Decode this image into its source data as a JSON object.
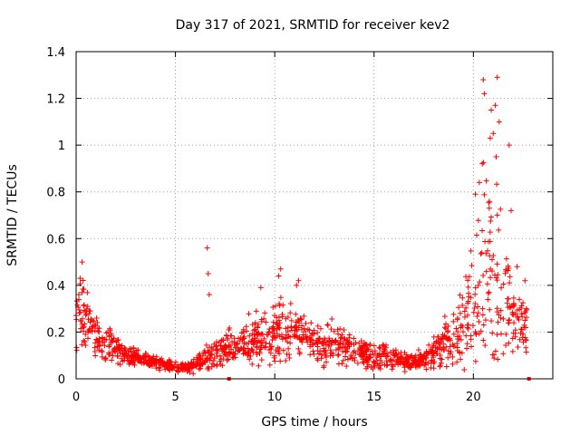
{
  "chart_data": {
    "type": "scatter",
    "title": "Day 317 of 2021, SRMTID for receiver kev2",
    "xlabel": "GPS time / hours",
    "ylabel": "SRMTID / TECUs",
    "xlim": [
      0,
      24
    ],
    "ylim": [
      0,
      1.4
    ],
    "x_ticks": [
      0,
      5,
      10,
      15,
      20
    ],
    "y_ticks": [
      0,
      0.2,
      0.4,
      0.6,
      0.8,
      1,
      1.2,
      1.4
    ],
    "x_tick_labels": [
      "0",
      "5",
      "10",
      "15",
      "20"
    ],
    "y_tick_labels": [
      "0",
      "0.2",
      "0.4",
      "0.6",
      "0.8",
      "1",
      "1.2",
      "1.4"
    ],
    "grid": true,
    "marker": "+",
    "series": [
      {
        "name": "SRMTID",
        "color": "#ff0000",
        "envelope": {
          "hours": [
            0,
            0.2,
            0.5,
            1,
            1.5,
            2,
            2.5,
            3,
            3.5,
            4,
            4.5,
            5,
            5.5,
            6,
            6.5,
            7,
            7.5,
            8,
            8.5,
            9,
            9.5,
            10,
            10.5,
            11,
            11.5,
            12,
            12.5,
            13,
            13.5,
            14,
            14.5,
            15,
            15.5,
            16,
            16.5,
            17,
            17.5,
            18,
            18.5,
            19,
            19.5,
            20,
            20.5,
            21,
            21.5,
            22,
            22.5,
            22.7
          ],
          "median": [
            0.25,
            0.3,
            0.25,
            0.18,
            0.15,
            0.13,
            0.09,
            0.09,
            0.08,
            0.07,
            0.06,
            0.05,
            0.05,
            0.06,
            0.08,
            0.12,
            0.14,
            0.14,
            0.15,
            0.18,
            0.17,
            0.2,
            0.22,
            0.2,
            0.18,
            0.16,
            0.15,
            0.15,
            0.14,
            0.12,
            0.11,
            0.1,
            0.1,
            0.09,
            0.08,
            0.07,
            0.08,
            0.12,
            0.15,
            0.18,
            0.22,
            0.3,
            0.45,
            0.5,
            0.4,
            0.3,
            0.22,
            0.2
          ],
          "spread": [
            0.12,
            0.15,
            0.12,
            0.08,
            0.07,
            0.06,
            0.04,
            0.04,
            0.03,
            0.03,
            0.02,
            0.02,
            0.02,
            0.03,
            0.05,
            0.07,
            0.06,
            0.06,
            0.07,
            0.1,
            0.09,
            0.11,
            0.12,
            0.1,
            0.09,
            0.08,
            0.08,
            0.08,
            0.07,
            0.05,
            0.05,
            0.05,
            0.05,
            0.05,
            0.04,
            0.03,
            0.04,
            0.06,
            0.08,
            0.12,
            0.17,
            0.25,
            0.35,
            0.4,
            0.3,
            0.15,
            0.1,
            0.1
          ]
        },
        "outliers": [
          {
            "x": 0.3,
            "y": 0.5
          },
          {
            "x": 0.2,
            "y": 0.43
          },
          {
            "x": 6.6,
            "y": 0.56
          },
          {
            "x": 6.65,
            "y": 0.45
          },
          {
            "x": 6.7,
            "y": 0.36
          },
          {
            "x": 10.3,
            "y": 0.47
          },
          {
            "x": 10.2,
            "y": 0.44
          },
          {
            "x": 9.3,
            "y": 0.39
          },
          {
            "x": 11.2,
            "y": 0.42
          },
          {
            "x": 11.1,
            "y": 0.4
          },
          {
            "x": 20.5,
            "y": 1.28
          },
          {
            "x": 20.55,
            "y": 1.22
          },
          {
            "x": 21.2,
            "y": 1.29
          },
          {
            "x": 21.1,
            "y": 1.17
          },
          {
            "x": 21.3,
            "y": 1.1
          },
          {
            "x": 20.9,
            "y": 1.15
          },
          {
            "x": 21.0,
            "y": 1.05
          },
          {
            "x": 20.85,
            "y": 1.03
          },
          {
            "x": 21.15,
            "y": 0.95
          },
          {
            "x": 20.45,
            "y": 0.92
          },
          {
            "x": 21.8,
            "y": 1.0
          },
          {
            "x": 20.3,
            "y": 0.84
          },
          {
            "x": 20.1,
            "y": 0.79
          },
          {
            "x": 21.9,
            "y": 0.72
          },
          {
            "x": 22.2,
            "y": 0.48
          },
          {
            "x": 22.6,
            "y": 0.42
          },
          {
            "x": 22.6,
            "y": 0.25
          }
        ],
        "axis_marks": [
          7.7,
          22.8
        ]
      }
    ]
  }
}
